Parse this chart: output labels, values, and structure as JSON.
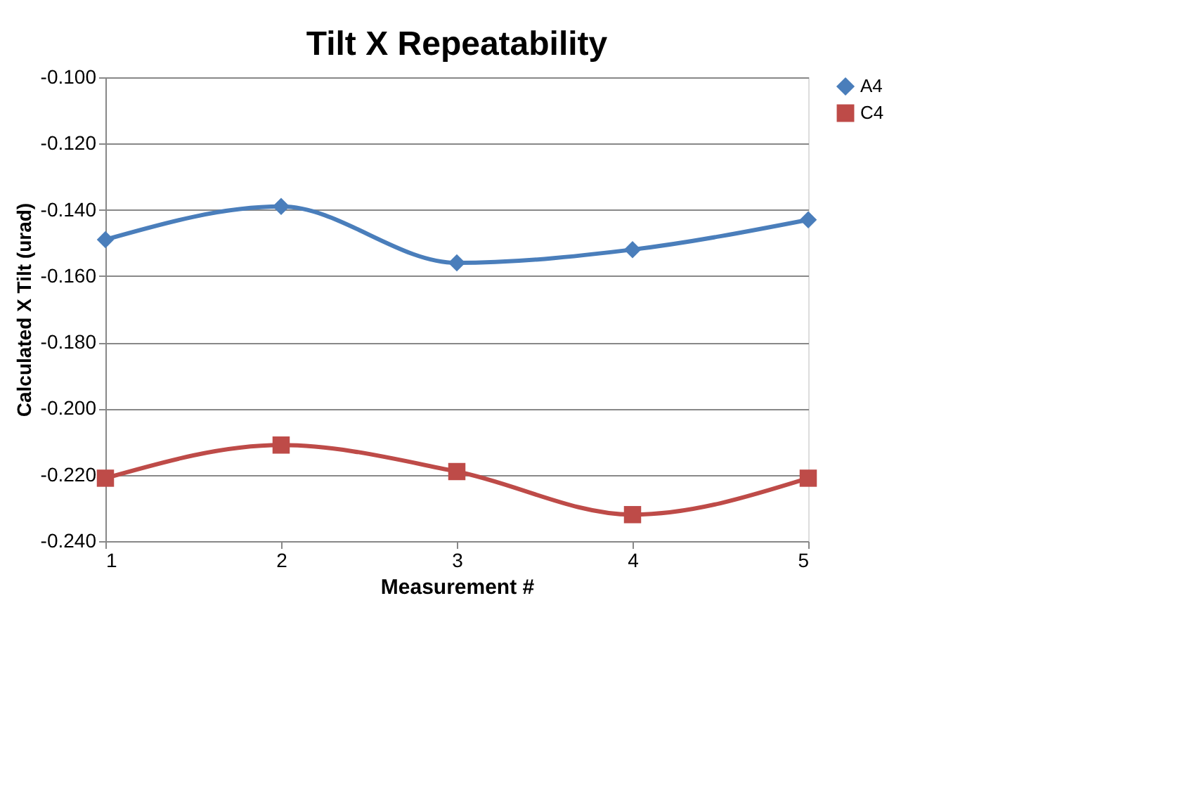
{
  "chart_data": {
    "type": "line",
    "title": "Tilt X Repeatability",
    "xlabel": "Measurement #",
    "ylabel": "Calculated X Tilt (urad)",
    "categories": [
      "1",
      "2",
      "3",
      "4",
      "5"
    ],
    "series": [
      {
        "name": "A4",
        "color": "#4a7ebb",
        "marker": "diamond",
        "values": [
          -0.149,
          -0.139,
          -0.156,
          -0.152,
          -0.143
        ]
      },
      {
        "name": "C4",
        "color": "#be4b48",
        "marker": "square",
        "values": [
          -0.221,
          -0.211,
          -0.219,
          -0.232,
          -0.221
        ]
      }
    ],
    "ylim": [
      -0.24,
      -0.1
    ],
    "yticks": [
      {
        "value": -0.24,
        "label": "-0.240"
      },
      {
        "value": -0.22,
        "label": "-0.220"
      },
      {
        "value": -0.2,
        "label": "-0.200"
      },
      {
        "value": -0.18,
        "label": "-0.180"
      },
      {
        "value": -0.16,
        "label": "-0.160"
      },
      {
        "value": -0.14,
        "label": "-0.140"
      },
      {
        "value": -0.12,
        "label": "-0.120"
      },
      {
        "value": -0.1,
        "label": "-0.100"
      }
    ],
    "grid": "y",
    "legend": "right",
    "line_style": "solid"
  }
}
